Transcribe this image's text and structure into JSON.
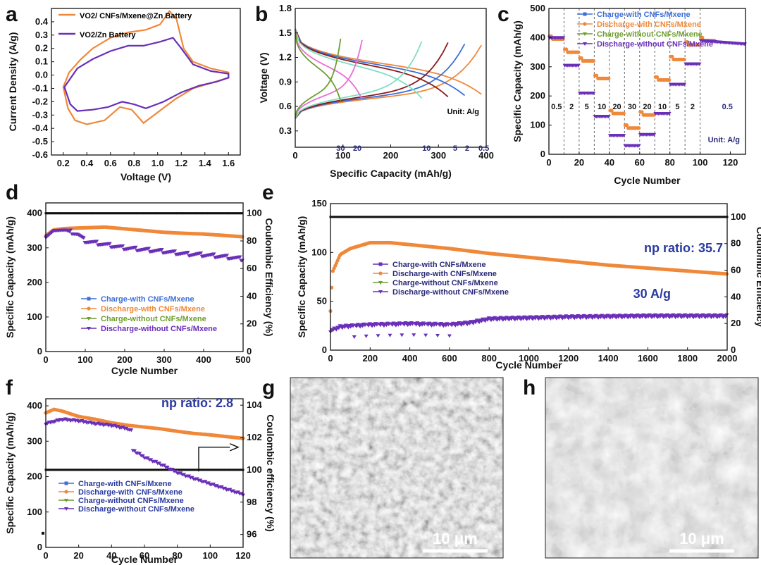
{
  "colors": {
    "orange": "#f0883a",
    "purple": "#6a2fb8",
    "blue": "#3d6fd8",
    "green": "#6d9e2c",
    "black": "#111111",
    "sem_dark": "#5a5a5a",
    "sem_light": "#9a9a9a"
  },
  "panel_letters": [
    "a",
    "b",
    "c",
    "d",
    "e",
    "f",
    "g",
    "h"
  ],
  "chart_data": [
    {
      "id": "a",
      "type": "line",
      "xlabel": "Voltage (V)",
      "ylabel": "Current Density (A/g)",
      "xlim": [
        0.1,
        1.7
      ],
      "ylim": [
        -0.6,
        0.5
      ],
      "xticks": [
        "0.2",
        "0.4",
        "0.6",
        "0.8",
        "1.0",
        "1.2",
        "1.4",
        "1.6"
      ],
      "yticks": [
        "-0.6",
        "-0.5",
        "-0.4",
        "-0.3",
        "-0.2",
        "-0.1",
        "0.0",
        "0.1",
        "0.2",
        "0.3",
        "0.4"
      ],
      "legend": [
        "VO2/ CNFs/Mxene@Zn  Battery",
        "VO2/Zn Battery"
      ],
      "series": [
        {
          "name": "VO2/ CNFs/Mxene@Zn Battery",
          "color": "orange",
          "points": [
            [
              0.2,
              -0.09
            ],
            [
              0.24,
              -0.25
            ],
            [
              0.3,
              -0.34
            ],
            [
              0.4,
              -0.37
            ],
            [
              0.55,
              -0.34
            ],
            [
              0.68,
              -0.24
            ],
            [
              0.78,
              -0.26
            ],
            [
              0.88,
              -0.36
            ],
            [
              1.0,
              -0.28
            ],
            [
              1.15,
              -0.18
            ],
            [
              1.3,
              -0.1
            ],
            [
              1.45,
              -0.06
            ],
            [
              1.6,
              -0.02
            ],
            [
              1.6,
              0.02
            ],
            [
              1.45,
              0.05
            ],
            [
              1.3,
              0.1
            ],
            [
              1.22,
              0.2
            ],
            [
              1.16,
              0.42
            ],
            [
              1.1,
              0.48
            ],
            [
              1.02,
              0.38
            ],
            [
              0.9,
              0.34
            ],
            [
              0.75,
              0.32
            ],
            [
              0.6,
              0.28
            ],
            [
              0.45,
              0.2
            ],
            [
              0.35,
              0.12
            ],
            [
              0.25,
              0.02
            ],
            [
              0.2,
              -0.09
            ]
          ]
        },
        {
          "name": "VO2/Zn Battery",
          "color": "purple",
          "points": [
            [
              0.21,
              -0.09
            ],
            [
              0.26,
              -0.22
            ],
            [
              0.32,
              -0.27
            ],
            [
              0.45,
              -0.26
            ],
            [
              0.58,
              -0.24
            ],
            [
              0.7,
              -0.2
            ],
            [
              0.8,
              -0.22
            ],
            [
              0.9,
              -0.25
            ],
            [
              1.05,
              -0.2
            ],
            [
              1.2,
              -0.13
            ],
            [
              1.35,
              -0.08
            ],
            [
              1.5,
              -0.05
            ],
            [
              1.6,
              -0.02
            ],
            [
              1.6,
              0.01
            ],
            [
              1.45,
              0.03
            ],
            [
              1.3,
              0.08
            ],
            [
              1.2,
              0.2
            ],
            [
              1.13,
              0.28
            ],
            [
              1.02,
              0.25
            ],
            [
              0.88,
              0.22
            ],
            [
              0.75,
              0.22
            ],
            [
              0.6,
              0.18
            ],
            [
              0.45,
              0.12
            ],
            [
              0.32,
              0.05
            ],
            [
              0.21,
              -0.09
            ]
          ]
        }
      ]
    },
    {
      "id": "b",
      "type": "line",
      "xlabel": "Specific Capacity (mAh/g)",
      "ylabel": "Voltage (V)",
      "xlim": [
        0,
        400
      ],
      "ylim": [
        0.1,
        1.8
      ],
      "xticks": [
        "0",
        "100",
        "200",
        "300",
        "400"
      ],
      "yticks": [
        "0.3",
        "0.6",
        "0.9",
        "1.2",
        "1.5",
        "1.8"
      ],
      "unit_note": "Unit: A/g",
      "rate_labels": [
        "30",
        "20",
        "10",
        "5",
        "2",
        "0.5"
      ],
      "series": [
        {
          "rate": "0.5",
          "color": "#f0883a",
          "cap": 390
        },
        {
          "rate": "2",
          "color": "#3d6fd8",
          "cap": 355
        },
        {
          "rate": "5",
          "color": "#8b1a1a",
          "cap": 320
        },
        {
          "rate": "10",
          "color": "#7ee0c4",
          "cap": 265
        },
        {
          "rate": "20",
          "color": "#e86ed8",
          "cap": 140
        },
        {
          "rate": "30",
          "color": "#6d9e2c",
          "cap": 95
        }
      ]
    },
    {
      "id": "c",
      "type": "scatter",
      "xlabel": "Cycle Number",
      "ylabel": "Specific Capacity (mAh/g)",
      "xlim": [
        0,
        130
      ],
      "ylim": [
        0,
        500
      ],
      "xticks": [
        "0",
        "20",
        "40",
        "60",
        "80",
        "100",
        "120"
      ],
      "yticks": [
        "0",
        "100",
        "200",
        "300",
        "400",
        "500"
      ],
      "legend": [
        "Charge-with CNFs/Mxene",
        "Discharge-with CNFs/Mxene",
        "Charge-without CNFs/Mxene",
        "Discharge-without CNFs/Mxene"
      ],
      "rate_steps": [
        "0.5",
        "2",
        "5",
        "10",
        "20",
        "30",
        "20",
        "10",
        "5",
        "2",
        "0.5"
      ],
      "unit_note": "Unit: A/g",
      "with_levels": [
        395,
        350,
        320,
        260,
        140,
        90,
        135,
        255,
        325,
        375,
        390
      ],
      "without_levels": [
        400,
        305,
        210,
        130,
        65,
        30,
        68,
        140,
        240,
        310,
        360
      ]
    },
    {
      "id": "d",
      "type": "scatter",
      "xlabel": "Cycle Number",
      "ylabel": "Specific Capacity (mAh/g)",
      "y2label": "Coulombic Efficiency (%)",
      "xlim": [
        0,
        500
      ],
      "ylim": [
        0,
        430
      ],
      "y2lim": [
        0,
        107.5
      ],
      "xticks": [
        "0",
        "100",
        "200",
        "300",
        "400",
        "500"
      ],
      "yticks": [
        "0",
        "100",
        "200",
        "300",
        "400"
      ],
      "y2ticks": [
        "0",
        "20",
        "40",
        "60",
        "80",
        "100"
      ],
      "legend": [
        "Charge-with CNFs/Mxene",
        "Discharge-with CNFs/Mxene",
        "Charge-without CNFs/Mxene",
        "Discharge-without CNFs/Mxene"
      ],
      "with_points": [
        [
          0,
          335
        ],
        [
          20,
          352
        ],
        [
          50,
          356
        ],
        [
          100,
          358
        ],
        [
          150,
          360
        ],
        [
          200,
          355
        ],
        [
          250,
          350
        ],
        [
          300,
          345
        ],
        [
          350,
          342
        ],
        [
          400,
          340
        ],
        [
          450,
          336
        ],
        [
          500,
          332
        ]
      ],
      "without_points": [
        [
          0,
          330
        ],
        [
          20,
          350
        ],
        [
          50,
          352
        ],
        [
          80,
          340
        ],
        [
          100,
          320
        ],
        [
          150,
          310
        ],
        [
          200,
          300
        ],
        [
          250,
          295
        ],
        [
          300,
          290
        ],
        [
          350,
          283
        ],
        [
          400,
          280
        ],
        [
          450,
          275
        ],
        [
          500,
          268
        ]
      ],
      "ce": 100
    },
    {
      "id": "e",
      "type": "scatter",
      "xlabel": "Cycle Number",
      "ylabel": "Specific Capacity (mAh/g)",
      "y2label": "Coulombic Efficiency",
      "xlim": [
        0,
        2000
      ],
      "ylim": [
        0,
        150
      ],
      "y2lim": [
        0,
        110
      ],
      "xticks": [
        "0",
        "200",
        "400",
        "600",
        "800",
        "1000",
        "1200",
        "1400",
        "1600",
        "1800",
        "2000"
      ],
      "yticks": [
        "0",
        "50",
        "100",
        "150"
      ],
      "y2ticks": [
        "0",
        "20",
        "40",
        "60",
        "80",
        "100"
      ],
      "legend": [
        "Charge-with CNFs/Mxene",
        "Discharge-with CNFs/Mxene",
        "Charge-without CNFs/Mxene",
        "Discharge-without CNFs/Mxene"
      ],
      "annotations": [
        "np ratio: 35.7",
        "30 A/g"
      ],
      "with_points": [
        [
          0,
          40
        ],
        [
          10,
          80
        ],
        [
          50,
          98
        ],
        [
          100,
          104
        ],
        [
          200,
          110
        ],
        [
          300,
          110
        ],
        [
          400,
          108
        ],
        [
          600,
          104
        ],
        [
          800,
          99
        ],
        [
          1000,
          95
        ],
        [
          1200,
          91
        ],
        [
          1400,
          87
        ],
        [
          1600,
          84
        ],
        [
          1800,
          81
        ],
        [
          2000,
          78
        ]
      ],
      "without_points": [
        [
          0,
          20
        ],
        [
          50,
          24
        ],
        [
          200,
          26
        ],
        [
          400,
          27
        ],
        [
          600,
          26
        ],
        [
          700,
          28
        ],
        [
          800,
          32
        ],
        [
          1000,
          33
        ],
        [
          1200,
          34
        ],
        [
          1600,
          35
        ],
        [
          2000,
          35
        ]
      ],
      "ce": 100
    },
    {
      "id": "f",
      "type": "scatter",
      "xlabel": "Cycle Number",
      "ylabel": "Specific Capacity (mAh/g)",
      "y2label": "Coulombic efficiency (%)",
      "xlim": [
        0,
        120
      ],
      "ylim": [
        0,
        420
      ],
      "y2lim": [
        95.2,
        104.4
      ],
      "xticks": [
        "0",
        "20",
        "40",
        "60",
        "80",
        "100",
        "120"
      ],
      "yticks": [
        "0",
        "100",
        "200",
        "300",
        "400"
      ],
      "y2ticks": [
        "96",
        "98",
        "100",
        "102",
        "104"
      ],
      "legend": [
        "Charge-with CNFs/Mxene",
        "Discharge-with CNFs/Mxene",
        "Charge-without CNFs/Mxene",
        "Discharge-without CNFs/Mxene"
      ],
      "annotations": [
        "np ratio: 2.8"
      ],
      "with_points": [
        [
          0,
          380
        ],
        [
          5,
          390
        ],
        [
          10,
          385
        ],
        [
          20,
          370
        ],
        [
          30,
          362
        ],
        [
          40,
          352
        ],
        [
          50,
          345
        ],
        [
          60,
          340
        ],
        [
          70,
          335
        ],
        [
          80,
          328
        ],
        [
          90,
          322
        ],
        [
          100,
          318
        ],
        [
          110,
          313
        ],
        [
          120,
          308
        ]
      ],
      "without_points": [
        [
          0,
          350
        ],
        [
          10,
          362
        ],
        [
          20,
          358
        ],
        [
          30,
          350
        ],
        [
          40,
          345
        ],
        [
          50,
          335
        ],
        [
          52,
          330
        ],
        [
          53,
          275
        ],
        [
          60,
          255
        ],
        [
          70,
          235
        ],
        [
          80,
          212
        ],
        [
          90,
          195
        ],
        [
          100,
          180
        ],
        [
          110,
          165
        ],
        [
          120,
          150
        ]
      ],
      "ce": 100
    }
  ],
  "sem": [
    {
      "id": "g",
      "scale_bar": "10 μm"
    },
    {
      "id": "h",
      "scale_bar": "10 μm"
    }
  ]
}
